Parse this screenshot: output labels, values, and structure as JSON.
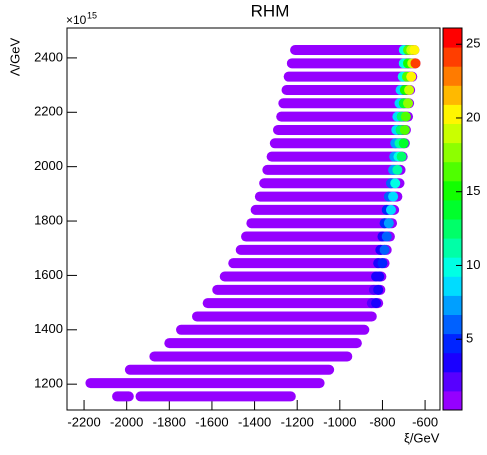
{
  "chart_data": {
    "type": "scatter",
    "title": "RHM",
    "xlabel": "ξ/GeV",
    "ylabel": "Λ/GeV",
    "y_multiplier": "×10",
    "y_multiplier_exponent": "15",
    "xlim": [
      -2280,
      -530
    ],
    "xticks": [
      -2200,
      -2000,
      -1800,
      -1600,
      -1400,
      -1200,
      -1000,
      -800,
      -600
    ],
    "ylim": [
      1105,
      2510
    ],
    "yticks": [
      1200,
      1400,
      1600,
      1800,
      2000,
      2200,
      2400
    ],
    "zlim": [
      0.2,
      26.1
    ],
    "zticks": [
      5,
      10,
      15,
      20,
      25
    ],
    "base_z": 1,
    "rows": [
      {
        "y": 1155,
        "xmin": -2045,
        "xmax": -1990,
        "tail_x": [],
        "tail_z": []
      },
      {
        "y": 1155,
        "xmin": -1935,
        "xmax": -1230,
        "tail_x": [],
        "tail_z": []
      },
      {
        "y": 1204,
        "xmin": -2170,
        "xmax": -1095,
        "tail_x": [],
        "tail_z": []
      },
      {
        "y": 1253,
        "xmin": -1985,
        "xmax": -1050,
        "tail_x": [],
        "tail_z": []
      },
      {
        "y": 1302,
        "xmin": -1870,
        "xmax": -965,
        "tail_x": [],
        "tail_z": []
      },
      {
        "y": 1351,
        "xmin": -1800,
        "xmax": -920,
        "tail_x": [],
        "tail_z": []
      },
      {
        "y": 1400,
        "xmin": -1745,
        "xmax": -885,
        "tail_x": [],
        "tail_z": []
      },
      {
        "y": 1449,
        "xmin": -1670,
        "xmax": -850,
        "tail_x": [],
        "tail_z": []
      },
      {
        "y": 1498,
        "xmin": -1620,
        "xmax": -820,
        "tail_x": [
          -850,
          -830
        ],
        "tail_z": [
          2,
          3
        ]
      },
      {
        "y": 1547,
        "xmin": -1575,
        "xmax": -810,
        "tail_x": [
          -840,
          -820
        ],
        "tail_z": [
          2,
          3
        ]
      },
      {
        "y": 1596,
        "xmin": -1540,
        "xmax": -805,
        "tail_x": [
          -830,
          -815
        ],
        "tail_z": [
          3,
          4
        ]
      },
      {
        "y": 1645,
        "xmin": -1500,
        "xmax": -790,
        "tail_x": [
          -820,
          -800
        ],
        "tail_z": [
          3,
          5
        ]
      },
      {
        "y": 1694,
        "xmin": -1465,
        "xmax": -780,
        "tail_x": [
          -810,
          -790
        ],
        "tail_z": [
          4,
          6
        ]
      },
      {
        "y": 1743,
        "xmin": -1440,
        "xmax": -765,
        "tail_x": [
          -800,
          -780
        ],
        "tail_z": [
          4,
          6
        ]
      },
      {
        "y": 1792,
        "xmin": -1415,
        "xmax": -755,
        "tail_x": [
          -790,
          -770
        ],
        "tail_z": [
          5,
          7
        ]
      },
      {
        "y": 1841,
        "xmin": -1395,
        "xmax": -745,
        "tail_x": [
          -780,
          -760
        ],
        "tail_z": [
          5,
          8
        ]
      },
      {
        "y": 1890,
        "xmin": -1375,
        "xmax": -730,
        "tail_x": [
          -770,
          -750
        ],
        "tail_z": [
          6,
          9
        ]
      },
      {
        "y": 1939,
        "xmin": -1355,
        "xmax": -720,
        "tail_x": [
          -760,
          -740
        ],
        "tail_z": [
          6,
          10
        ]
      },
      {
        "y": 1988,
        "xmin": -1340,
        "xmax": -715,
        "tail_x": [
          -750,
          -730
        ],
        "tail_z": [
          7,
          11
        ]
      },
      {
        "y": 2037,
        "xmin": -1320,
        "xmax": -705,
        "tail_x": [
          -745,
          -725,
          -710
        ],
        "tail_z": [
          7,
          10,
          13
        ]
      },
      {
        "y": 2086,
        "xmin": -1305,
        "xmax": -695,
        "tail_x": [
          -740,
          -720,
          -700
        ],
        "tail_z": [
          7,
          11,
          14
        ]
      },
      {
        "y": 2135,
        "xmin": -1290,
        "xmax": -690,
        "tail_x": [
          -735,
          -715,
          -695
        ],
        "tail_z": [
          8,
          12,
          16
        ]
      },
      {
        "y": 2184,
        "xmin": -1275,
        "xmax": -680,
        "tail_x": [
          -730,
          -710,
          -690
        ],
        "tail_z": [
          8,
          13,
          17
        ]
      },
      {
        "y": 2233,
        "xmin": -1265,
        "xmax": -675,
        "tail_x": [
          -720,
          -700,
          -680
        ],
        "tail_z": [
          9,
          14,
          18
        ]
      },
      {
        "y": 2282,
        "xmin": -1250,
        "xmax": -670,
        "tail_x": [
          -715,
          -695,
          -675
        ],
        "tail_z": [
          9,
          15,
          19
        ]
      },
      {
        "y": 2331,
        "xmin": -1240,
        "xmax": -660,
        "tail_x": [
          -705,
          -685,
          -665
        ],
        "tail_z": [
          10,
          16,
          20
        ]
      },
      {
        "y": 2380,
        "xmin": -1225,
        "xmax": -645,
        "tail_x": [
          -700,
          -680,
          -660,
          -645
        ],
        "tail_z": [
          10,
          15,
          19,
          24
        ]
      },
      {
        "y": 2429,
        "xmin": -1210,
        "xmax": -650,
        "tail_x": [
          -700,
          -680,
          -665,
          -650
        ],
        "tail_z": [
          10,
          16,
          19,
          20
        ]
      }
    ]
  }
}
